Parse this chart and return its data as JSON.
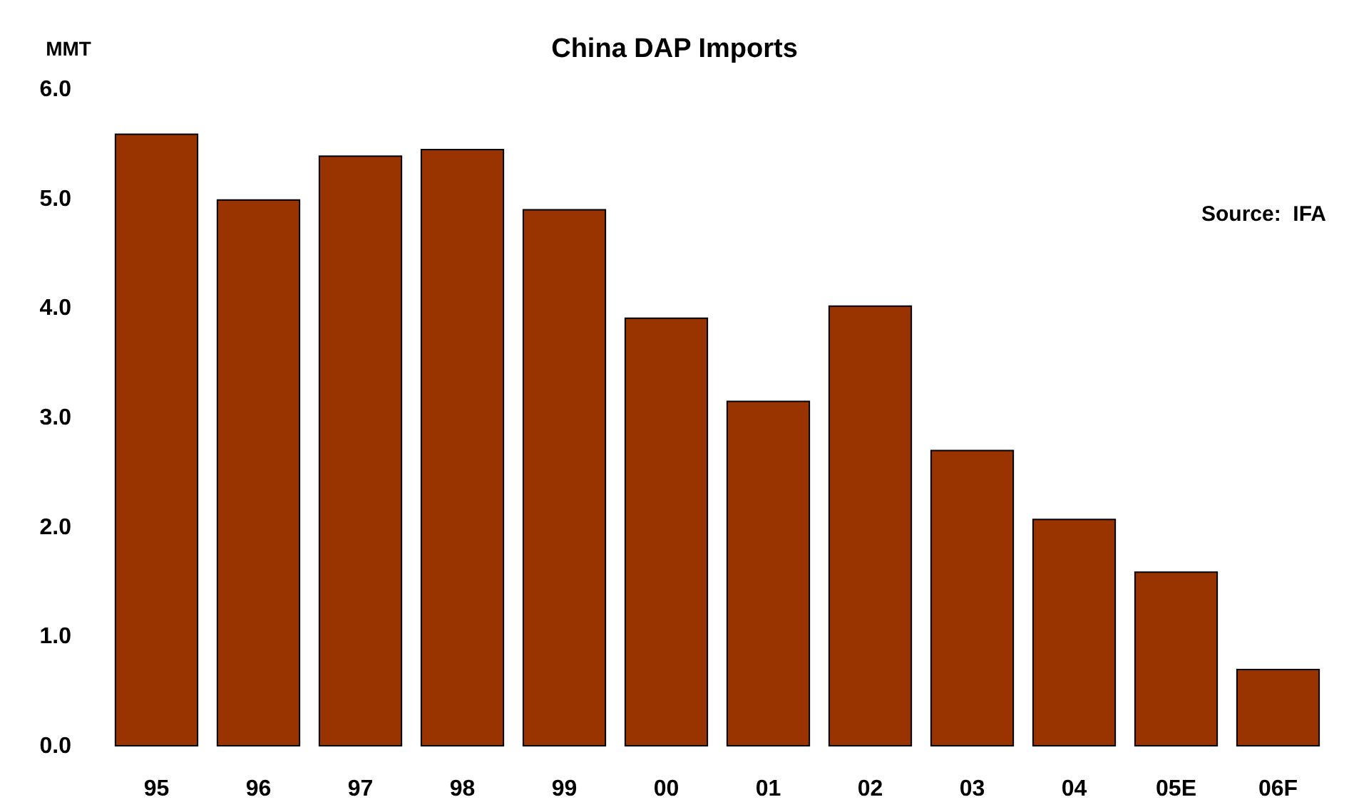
{
  "chart_data": {
    "type": "bar",
    "title": "China DAP Imports",
    "ylabel": "MMT",
    "categories": [
      "95",
      "96",
      "97",
      "98",
      "99",
      "00",
      "01",
      "02",
      "03",
      "04",
      "05E",
      "06F"
    ],
    "values": [
      5.6,
      5.0,
      5.4,
      5.46,
      4.91,
      3.92,
      3.16,
      4.03,
      2.71,
      2.08,
      1.6,
      0.71
    ],
    "color": "#993300",
    "ylim": [
      0,
      6
    ],
    "yticks": [
      {
        "value": 0,
        "label": "0.0"
      },
      {
        "value": 1,
        "label": "1.0"
      },
      {
        "value": 2,
        "label": "2.0"
      },
      {
        "value": 3,
        "label": "3.0"
      },
      {
        "value": 4,
        "label": "4.0"
      },
      {
        "value": 5,
        "label": "5.0"
      },
      {
        "value": 6,
        "label": "6.0"
      }
    ],
    "grid": false,
    "annotations": [
      "Source:  IFA"
    ]
  }
}
